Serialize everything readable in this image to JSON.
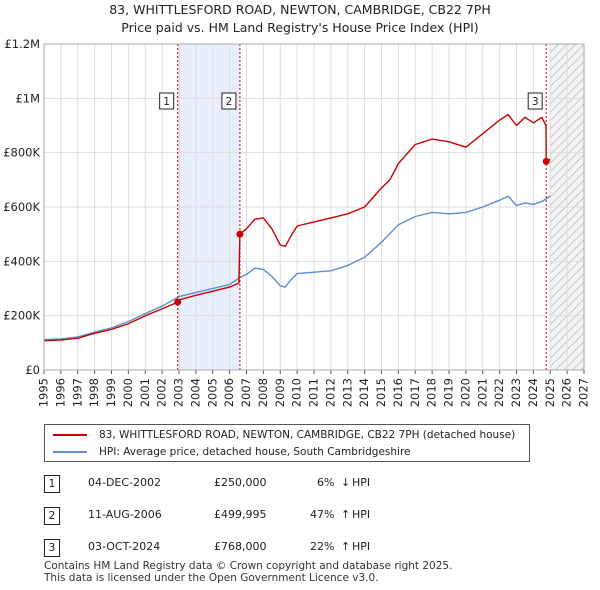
{
  "title_line1": "83, WHITTLESFORD ROAD, NEWTON, CAMBRIDGE, CB22 7PH",
  "title_line2": "Price paid vs. HM Land Registry's House Price Index (HPI)",
  "colors": {
    "price": "#cc0000",
    "hpi": "#5b8fd0",
    "highlight": "#e8eefb",
    "grid": "#dddddd"
  },
  "chart_data": {
    "type": "line",
    "title": "Price paid vs. HM Land Registry's House Price Index (HPI)",
    "xlim": [
      1995,
      2027
    ],
    "ylim": [
      0,
      1200000
    ],
    "x_ticks": [
      "1995",
      "1996",
      "1997",
      "1998",
      "1999",
      "2000",
      "2001",
      "2002",
      "2003",
      "2004",
      "2005",
      "2006",
      "2007",
      "2008",
      "2009",
      "2010",
      "2011",
      "2012",
      "2013",
      "2014",
      "2015",
      "2016",
      "2017",
      "2018",
      "2019",
      "2020",
      "2021",
      "2022",
      "2023",
      "2024",
      "2025",
      "2026",
      "2027"
    ],
    "y_ticks": [
      {
        "value": 0,
        "label": "£0"
      },
      {
        "value": 200000,
        "label": "£200K"
      },
      {
        "value": 400000,
        "label": "£400K"
      },
      {
        "value": 600000,
        "label": "£600K"
      },
      {
        "value": 800000,
        "label": "£800K"
      },
      {
        "value": 1000000,
        "label": "£1M"
      },
      {
        "value": 1200000,
        "label": "£1.2M"
      }
    ],
    "highlight_span": [
      2002.92,
      2006.61
    ],
    "hatch_from": 2025.0,
    "series": [
      {
        "name": "83, WHITTLESFORD ROAD, NEWTON, CAMBRIDGE, CB22 7PH (detached house)",
        "color": "#cc0000",
        "x": [
          1995,
          1996,
          1997,
          1998,
          1999,
          2000,
          2001,
          2002,
          2002.92,
          2003,
          2004,
          2005,
          2006,
          2006.55,
          2006.61,
          2007,
          2007.5,
          2008,
          2008.5,
          2009,
          2009.3,
          2009.6,
          2010,
          2011,
          2012,
          2013,
          2014,
          2015,
          2015.5,
          2016,
          2017,
          2018,
          2019,
          2020,
          2021,
          2022,
          2022.5,
          2023,
          2023.5,
          2024,
          2024.5,
          2024.75,
          2024.76,
          2025
        ],
        "y": [
          108000,
          110000,
          117000,
          135000,
          150000,
          170000,
          200000,
          225000,
          250000,
          258000,
          275000,
          290000,
          305000,
          320000,
          499995,
          520000,
          555000,
          560000,
          520000,
          460000,
          455000,
          490000,
          530000,
          545000,
          560000,
          575000,
          600000,
          670000,
          700000,
          760000,
          830000,
          850000,
          840000,
          820000,
          870000,
          920000,
          940000,
          900000,
          930000,
          910000,
          930000,
          900000,
          768000,
          775000
        ]
      },
      {
        "name": "HPI: Average price, detached house, South Cambridgeshire",
        "color": "#5b8fd0",
        "x": [
          1995,
          1996,
          1997,
          1998,
          1999,
          2000,
          2001,
          2002,
          2003,
          2004,
          2005,
          2006,
          2006.6,
          2007,
          2007.5,
          2008,
          2008.5,
          2009,
          2009.3,
          2009.6,
          2010,
          2011,
          2012,
          2013,
          2014,
          2015,
          2016,
          2017,
          2018,
          2019,
          2020,
          2021,
          2022,
          2022.5,
          2023,
          2023.5,
          2024,
          2024.5,
          2025
        ],
        "y": [
          112000,
          114000,
          122000,
          140000,
          155000,
          178000,
          208000,
          235000,
          270000,
          285000,
          300000,
          315000,
          340000,
          352000,
          375000,
          370000,
          345000,
          310000,
          305000,
          330000,
          355000,
          360000,
          365000,
          385000,
          415000,
          470000,
          535000,
          565000,
          580000,
          575000,
          580000,
          600000,
          625000,
          640000,
          605000,
          615000,
          610000,
          620000,
          640000
        ]
      }
    ],
    "sales": [
      {
        "label": "1",
        "date": "04-DEC-2002",
        "price": "£250,000",
        "x": 2002.92,
        "y": 250000,
        "pct": "6%",
        "arrow": "↓",
        "hpi": "HPI"
      },
      {
        "label": "2",
        "date": "11-AUG-2006",
        "price": "£499,995",
        "x": 2006.61,
        "y": 499995,
        "pct": "47%",
        "arrow": "↑",
        "hpi": "HPI"
      },
      {
        "label": "3",
        "date": "03-OCT-2024",
        "price": "£768,000",
        "x": 2024.76,
        "y": 768000,
        "pct": "22%",
        "arrow": "↑",
        "hpi": "HPI"
      }
    ]
  },
  "legend": {
    "price_label": "83, WHITTLESFORD ROAD, NEWTON, CAMBRIDGE, CB22 7PH (detached house)",
    "hpi_label": "HPI: Average price, detached house, South Cambridgeshire"
  },
  "footer": {
    "line1": "Contains HM Land Registry data © Crown copyright and database right 2025.",
    "line2": "This data is licensed under the Open Government Licence v3.0."
  }
}
